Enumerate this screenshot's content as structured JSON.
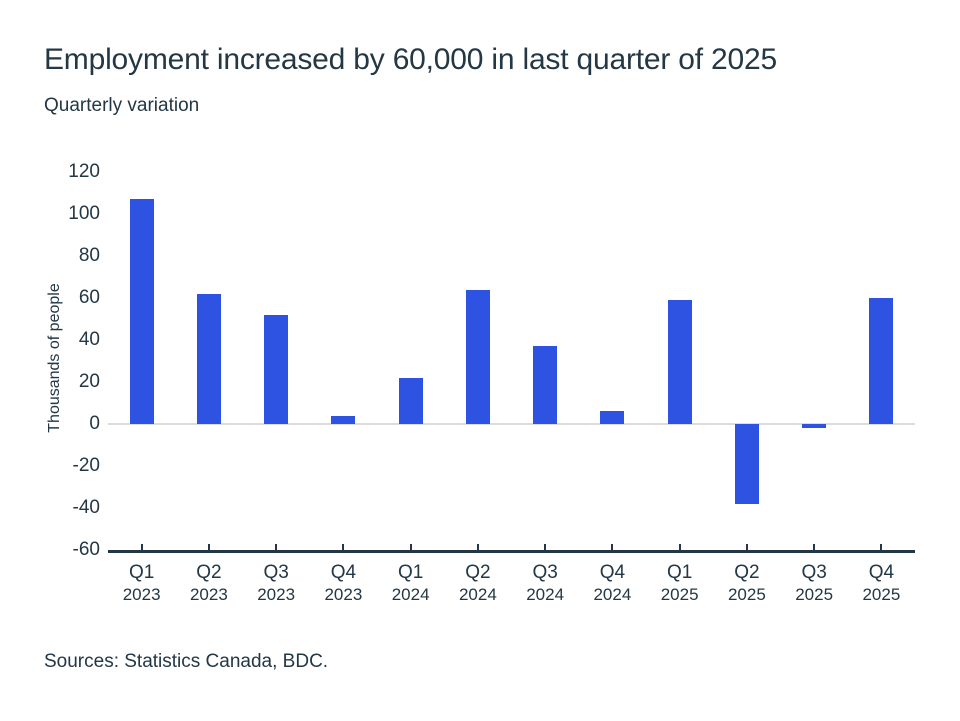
{
  "colors": {
    "bar": "#2e52e2",
    "text": "#233745",
    "axis": "#233745",
    "zero_line": "#dcdcd8",
    "background": "#ffffff"
  },
  "chart_data": {
    "type": "bar",
    "title": "Employment increased by 60,000 in last quarter of 2025",
    "subtitle": "Quarterly variation",
    "ylabel": "Thousands of people",
    "xlabel": "",
    "ylim": [
      -60,
      120
    ],
    "yticks": [
      120,
      100,
      80,
      60,
      40,
      20,
      0,
      -20,
      -40,
      -60
    ],
    "grid": "zero-line-only",
    "legend": "none",
    "categories": [
      {
        "quarter": "Q1",
        "year": "2023"
      },
      {
        "quarter": "Q2",
        "year": "2023"
      },
      {
        "quarter": "Q3",
        "year": "2023"
      },
      {
        "quarter": "Q4",
        "year": "2023"
      },
      {
        "quarter": "Q1",
        "year": "2024"
      },
      {
        "quarter": "Q2",
        "year": "2024"
      },
      {
        "quarter": "Q3",
        "year": "2024"
      },
      {
        "quarter": "Q4",
        "year": "2024"
      },
      {
        "quarter": "Q1",
        "year": "2025"
      },
      {
        "quarter": "Q2",
        "year": "2025"
      },
      {
        "quarter": "Q3",
        "year": "2025"
      },
      {
        "quarter": "Q4",
        "year": "2025"
      }
    ],
    "values": [
      107,
      62,
      52,
      4,
      22,
      64,
      37,
      6,
      59,
      -38,
      -2,
      60
    ],
    "source": "Sources: Statistics Canada, BDC."
  }
}
